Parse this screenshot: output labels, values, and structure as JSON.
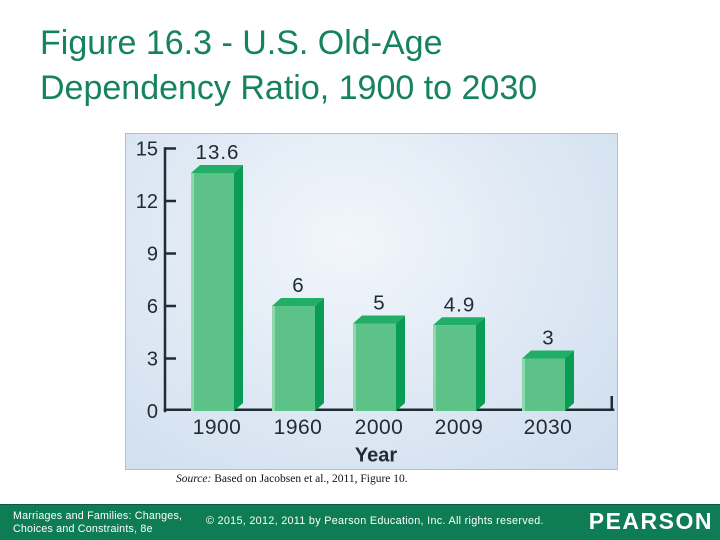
{
  "slide": {
    "title_line1": "Figure 16.3 - U.S. Old-Age",
    "title_line2": "Dependency Ratio, 1900 to 2030",
    "source_prefix": "Source:",
    "source_text": " Based on Jacobsen et al., 2011, Figure 10."
  },
  "footer": {
    "book_line1": "Marriages and Families: Changes,",
    "book_line2": "Choices and Constraints, 8e",
    "copyright": "© 2015, 2012, 2011 by Pearson Education, Inc. All rights reserved.",
    "brand": "PEARSON"
  },
  "colors": {
    "title": "#15835D",
    "footer_bg": "#0E7C55",
    "footer_border_top": "#0A5940",
    "footer_text": "#FFFFFF",
    "panel_border": "#AFC0D3",
    "panel_bg_light": "#F2F6FB",
    "panel_bg_mid": "#DCE7F3",
    "panel_bg_dark": "#CEDDEE",
    "axis_text": "#202B36",
    "bar_front": "#5CC287",
    "bar_top": "#21AF67",
    "bar_side": "#0A9B55",
    "bar_bevel": "#8FD8AC"
  },
  "chart_data": {
    "type": "bar",
    "style": "3d-bar",
    "title": "",
    "categories": [
      "1900",
      "1960",
      "2000",
      "2009",
      "2030"
    ],
    "values": [
      13.6,
      6,
      5,
      4.9,
      3
    ],
    "value_labels": [
      "13.6",
      "6",
      "5",
      "4.9",
      "3"
    ],
    "xlabel": "Year",
    "ylabel": "",
    "ylim": [
      0,
      15
    ],
    "yticks": [
      0,
      3,
      6,
      9,
      12,
      15
    ],
    "grid": false,
    "legend": "none",
    "plot_background": "light blue gradient panel"
  }
}
